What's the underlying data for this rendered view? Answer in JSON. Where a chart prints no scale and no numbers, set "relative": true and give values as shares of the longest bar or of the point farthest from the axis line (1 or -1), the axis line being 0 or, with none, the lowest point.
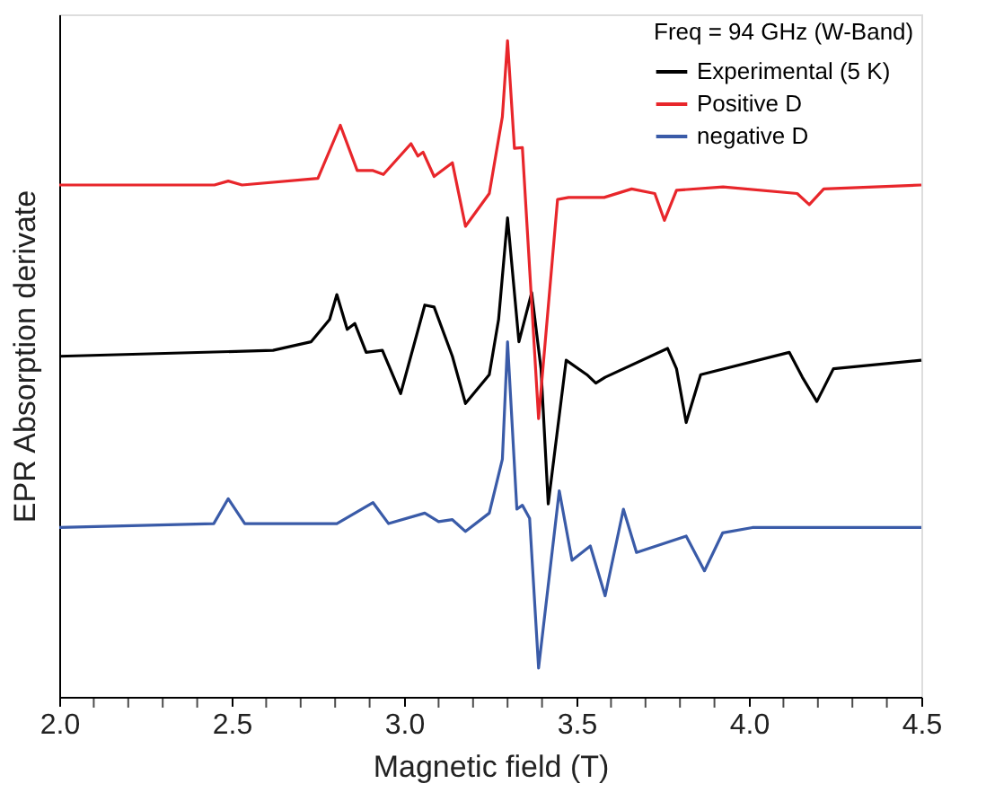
{
  "chart_data": {
    "type": "line",
    "relative": true,
    "xlabel": "Magnetic field (T)",
    "ylabel": "EPR Absorption derivate",
    "legend_title": "Freq = 94 GHz (W-Band)",
    "legend": "top right",
    "grid": false,
    "tick_labels": "x",
    "marker": "none",
    "line_style": "solid",
    "xlim": [
      2.0,
      4.5
    ],
    "xticks": [
      {
        "value": 2.0,
        "label": "2.0"
      },
      {
        "value": 2.1,
        "label": null
      },
      {
        "value": 2.2,
        "label": null
      },
      {
        "value": 2.3,
        "label": null
      },
      {
        "value": 2.4,
        "label": null
      },
      {
        "value": 2.5,
        "label": "2.5"
      },
      {
        "value": 2.6,
        "label": null
      },
      {
        "value": 2.7,
        "label": null
      },
      {
        "value": 2.8,
        "label": null
      },
      {
        "value": 2.9,
        "label": null
      },
      {
        "value": 3.0,
        "label": "3.0"
      },
      {
        "value": 3.1,
        "label": null
      },
      {
        "value": 3.2,
        "label": null
      },
      {
        "value": 3.3,
        "label": null
      },
      {
        "value": 3.4,
        "label": null
      },
      {
        "value": 3.5,
        "label": "3.5"
      },
      {
        "value": 3.6,
        "label": null
      },
      {
        "value": 3.7,
        "label": null
      },
      {
        "value": 3.8,
        "label": null
      },
      {
        "value": 3.9,
        "label": null
      },
      {
        "value": 4.0,
        "label": "4.0"
      },
      {
        "value": 4.1,
        "label": null
      },
      {
        "value": 4.2,
        "label": null
      },
      {
        "value": 4.3,
        "label": null
      },
      {
        "value": 4.4,
        "label": null
      },
      {
        "value": 4.5,
        "label": "4.5"
      }
    ],
    "series": [
      {
        "name": "Experimental (5 K)",
        "color": "#000000",
        "x": [
          2.0,
          2.62,
          2.73,
          2.784,
          2.805,
          2.835,
          2.857,
          2.89,
          2.937,
          2.99,
          3.06,
          3.087,
          3.14,
          3.178,
          3.247,
          3.274,
          3.3,
          3.333,
          3.37,
          3.397,
          3.418,
          3.47,
          3.53,
          3.556,
          3.583,
          3.764,
          3.79,
          3.818,
          3.86,
          4.117,
          4.155,
          4.197,
          4.245,
          4.5
        ],
        "values": [
          0.519,
          0.528,
          0.541,
          0.575,
          0.613,
          0.56,
          0.569,
          0.525,
          0.528,
          0.462,
          0.597,
          0.594,
          0.519,
          0.447,
          0.491,
          0.575,
          0.73,
          0.541,
          0.616,
          0.5,
          0.294,
          0.513,
          0.491,
          0.478,
          0.487,
          0.531,
          0.5,
          0.418,
          0.491,
          0.525,
          0.487,
          0.45,
          0.5,
          0.513
        ]
      },
      {
        "name": "Positive D",
        "color": "#e8262b",
        "x": [
          2.0,
          2.45,
          2.49,
          2.53,
          2.75,
          2.815,
          2.864,
          2.91,
          2.94,
          3.02,
          3.04,
          3.055,
          3.087,
          3.14,
          3.178,
          3.247,
          3.285,
          3.3,
          3.32,
          3.343,
          3.39,
          3.445,
          3.477,
          3.58,
          3.66,
          3.727,
          3.755,
          3.79,
          3.925,
          4.14,
          4.175,
          4.217,
          4.5
        ],
        "values": [
          0.78,
          0.78,
          0.786,
          0.78,
          0.79,
          0.871,
          0.802,
          0.802,
          0.796,
          0.843,
          0.824,
          0.83,
          0.793,
          0.814,
          0.717,
          0.767,
          0.884,
          1.0,
          0.836,
          0.837,
          0.424,
          0.758,
          0.761,
          0.761,
          0.774,
          0.767,
          0.726,
          0.772,
          0.777,
          0.767,
          0.75,
          0.774,
          0.78
        ]
      },
      {
        "name": "negative D",
        "color": "#3a5ba8",
        "x": [
          2.0,
          2.448,
          2.49,
          2.538,
          2.805,
          2.91,
          2.955,
          3.06,
          3.1,
          3.14,
          3.178,
          3.247,
          3.285,
          3.3,
          3.327,
          3.343,
          3.364,
          3.39,
          3.45,
          3.487,
          3.54,
          3.583,
          3.636,
          3.674,
          3.818,
          3.871,
          3.924,
          4.01,
          4.5
        ],
        "values": [
          0.258,
          0.264,
          0.302,
          0.264,
          0.264,
          0.296,
          0.264,
          0.28,
          0.267,
          0.27,
          0.252,
          0.28,
          0.362,
          0.541,
          0.286,
          0.292,
          0.272,
          0.044,
          0.314,
          0.208,
          0.23,
          0.154,
          0.286,
          0.22,
          0.245,
          0.192,
          0.25,
          0.258,
          0.258
        ]
      }
    ]
  }
}
